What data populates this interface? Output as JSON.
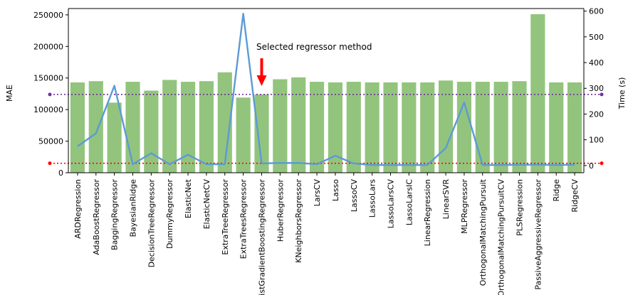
{
  "chart_data": {
    "type": "bar",
    "categories": [
      "ARDRegression",
      "AdaBoostRegressor",
      "BaggingRegressor",
      "BayesianRidge",
      "DecisionTreeRegressor",
      "DummyRegressor",
      "ElasticNet",
      "ElasticNetCV",
      "ExtraTreeRegressor",
      "ExtraTreesRegressor",
      "HistGradientBoostingRegressor",
      "HuberRegressor",
      "KNeighborsRegressor",
      "LarsCV",
      "Lasso",
      "LassoCV",
      "LassoLars",
      "LassoLarsCV",
      "LassoLarsIC",
      "LinearRegression",
      "LinearSVR",
      "MLPRegressor",
      "OrthogonalMatchingPursuit",
      "OrthogonalMatchingPursuitCV",
      "PLSRegression",
      "PassiveAggressiveRegressor",
      "Ridge",
      "RidgeCV"
    ],
    "series": [
      {
        "type": "bar",
        "axis": "left",
        "color": "#93c47d",
        "values": [
          143000,
          145000,
          111000,
          144000,
          130000,
          147000,
          144000,
          145000,
          159000,
          119000,
          124000,
          148000,
          151000,
          144000,
          143000,
          144000,
          143000,
          143000,
          143000,
          143000,
          146000,
          144000,
          144000,
          144000,
          145000,
          251000,
          143000,
          143000
        ]
      },
      {
        "type": "line",
        "axis": "right",
        "color": "#5b9bd5",
        "values": [
          75,
          125,
          310,
          5,
          48,
          5,
          42,
          5,
          5,
          590,
          8,
          10,
          10,
          5,
          38,
          8,
          2,
          2,
          2,
          2,
          68,
          245,
          2,
          2,
          3,
          3,
          2,
          3
        ]
      }
    ],
    "ylabel": "MAE",
    "ylabel_right": "Time (s)",
    "ylim": [
      0,
      260000
    ],
    "yticks": [
      0,
      50000,
      100000,
      150000,
      200000,
      250000
    ],
    "ylim_right": [
      -28,
      610
    ],
    "yticks_right": [
      0,
      100,
      200,
      300,
      400,
      500,
      600
    ],
    "reference_lines": [
      {
        "axis": "left",
        "value": 124000,
        "color": "#7030a0",
        "style": "dotted"
      },
      {
        "axis": "left",
        "value": 15000,
        "color": "#ff0000",
        "style": "dotted"
      }
    ],
    "annotation": {
      "text": "Selected regressor method",
      "target_category": "HistGradientBoostingRegressor",
      "arrow_color": "#ff0000"
    },
    "grid": false
  }
}
